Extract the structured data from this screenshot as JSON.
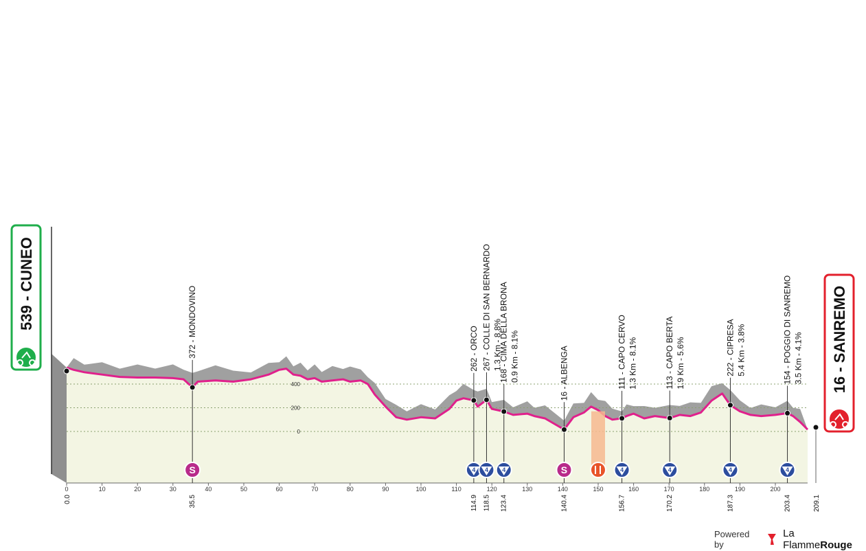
{
  "chart_data": {
    "type": "area",
    "title": "",
    "xlabel": "",
    "ylabel": "",
    "xlim": [
      0,
      209.1
    ],
    "ylim": [
      0,
      600
    ],
    "x_ticks": [
      "0",
      "10",
      "20",
      "30",
      "40",
      "50",
      "60",
      "70",
      "80",
      "90",
      "100",
      "110",
      "120",
      "130",
      "140",
      "150",
      "160",
      "170",
      "180",
      "190",
      "200"
    ],
    "y_ticks": [
      "0",
      "200",
      "400"
    ],
    "start": {
      "label": "539 - CUNEO",
      "km": "0.0",
      "color": "#1fae4b"
    },
    "finish": {
      "label": "16 - SANREMO",
      "km": "209.1",
      "color": "#e3202c"
    },
    "series": [
      {
        "points": [
          [
            0,
            539
          ],
          [
            2,
            520
          ],
          [
            5,
            500
          ],
          [
            10,
            480
          ],
          [
            15,
            460
          ],
          [
            20,
            455
          ],
          [
            25,
            455
          ],
          [
            30,
            450
          ],
          [
            33,
            440
          ],
          [
            35.5,
            372
          ],
          [
            37,
            420
          ],
          [
            42,
            430
          ],
          [
            47,
            420
          ],
          [
            52,
            440
          ],
          [
            57,
            480
          ],
          [
            60,
            520
          ],
          [
            62,
            530
          ],
          [
            64,
            480
          ],
          [
            66,
            470
          ],
          [
            68,
            440
          ],
          [
            70,
            450
          ],
          [
            72,
            420
          ],
          [
            75,
            430
          ],
          [
            78,
            440
          ],
          [
            80,
            420
          ],
          [
            83,
            430
          ],
          [
            85,
            400
          ],
          [
            87,
            310
          ],
          [
            90,
            210
          ],
          [
            93,
            120
          ],
          [
            96,
            100
          ],
          [
            100,
            120
          ],
          [
            104,
            110
          ],
          [
            108,
            190
          ],
          [
            110,
            260
          ],
          [
            112,
            280
          ],
          [
            114.9,
            262
          ],
          [
            116,
            210
          ],
          [
            118.5,
            267
          ],
          [
            120,
            190
          ],
          [
            123.4,
            168
          ],
          [
            126,
            140
          ],
          [
            130,
            150
          ],
          [
            132,
            130
          ],
          [
            135,
            110
          ],
          [
            140.4,
            16
          ],
          [
            143,
            120
          ],
          [
            146,
            160
          ],
          [
            148,
            210
          ],
          [
            150,
            180
          ],
          [
            152,
            130
          ],
          [
            154,
            100
          ],
          [
            156.7,
            111
          ],
          [
            158,
            130
          ],
          [
            160,
            150
          ],
          [
            163,
            110
          ],
          [
            166,
            130
          ],
          [
            170.2,
            113
          ],
          [
            173,
            140
          ],
          [
            176,
            130
          ],
          [
            179,
            160
          ],
          [
            182,
            260
          ],
          [
            185,
            320
          ],
          [
            187.3,
            222
          ],
          [
            190,
            170
          ],
          [
            193,
            140
          ],
          [
            196,
            130
          ],
          [
            200,
            140
          ],
          [
            203.4,
            154
          ],
          [
            205,
            130
          ],
          [
            207,
            80
          ],
          [
            209.1,
            16
          ]
        ]
      }
    ],
    "points_of_interest": [
      {
        "km": "35.5",
        "label": "372 - MONDOVINO",
        "marker": "S"
      },
      {
        "km": "114.9",
        "label": "262 - ORCO",
        "marker": "4"
      },
      {
        "km": "118.5",
        "label": "267 - COLLE DI SAN BERNARDO / 1.3 Km - 8.8%",
        "marker": "4"
      },
      {
        "km": "123.4",
        "label": "168 - CIMA DELLA BRONA / 0.9 Km - 8.1%",
        "marker": "4"
      },
      {
        "km": "140.4",
        "label": "16 - ALBENGA",
        "marker": "S"
      },
      {
        "km": "150",
        "label": "",
        "marker": "feed"
      },
      {
        "km": "156.7",
        "label": "111 - CAPO CERVO / 1.3 Km - 8.1%",
        "marker": "4"
      },
      {
        "km": "170.2",
        "label": "113 - CAPO BERTA / 1.9 Km - 5.6%",
        "marker": "4"
      },
      {
        "km": "187.3",
        "label": "222 - CIPRESA / 5.4 Km - 3.8%",
        "marker": "4"
      },
      {
        "km": "203.4",
        "label": "154 - POGGIO DI SANREMO / 3.5 Km - 4.1%",
        "marker": "4"
      }
    ],
    "colors": {
      "profile_line": "#e0208c",
      "terrain": "#a0a0a0",
      "area": "#f3f5e3"
    },
    "grid": true
  },
  "footer": {
    "powered": "Powered by",
    "brand_plain": "La Flamme",
    "brand_bold": "Rouge"
  }
}
